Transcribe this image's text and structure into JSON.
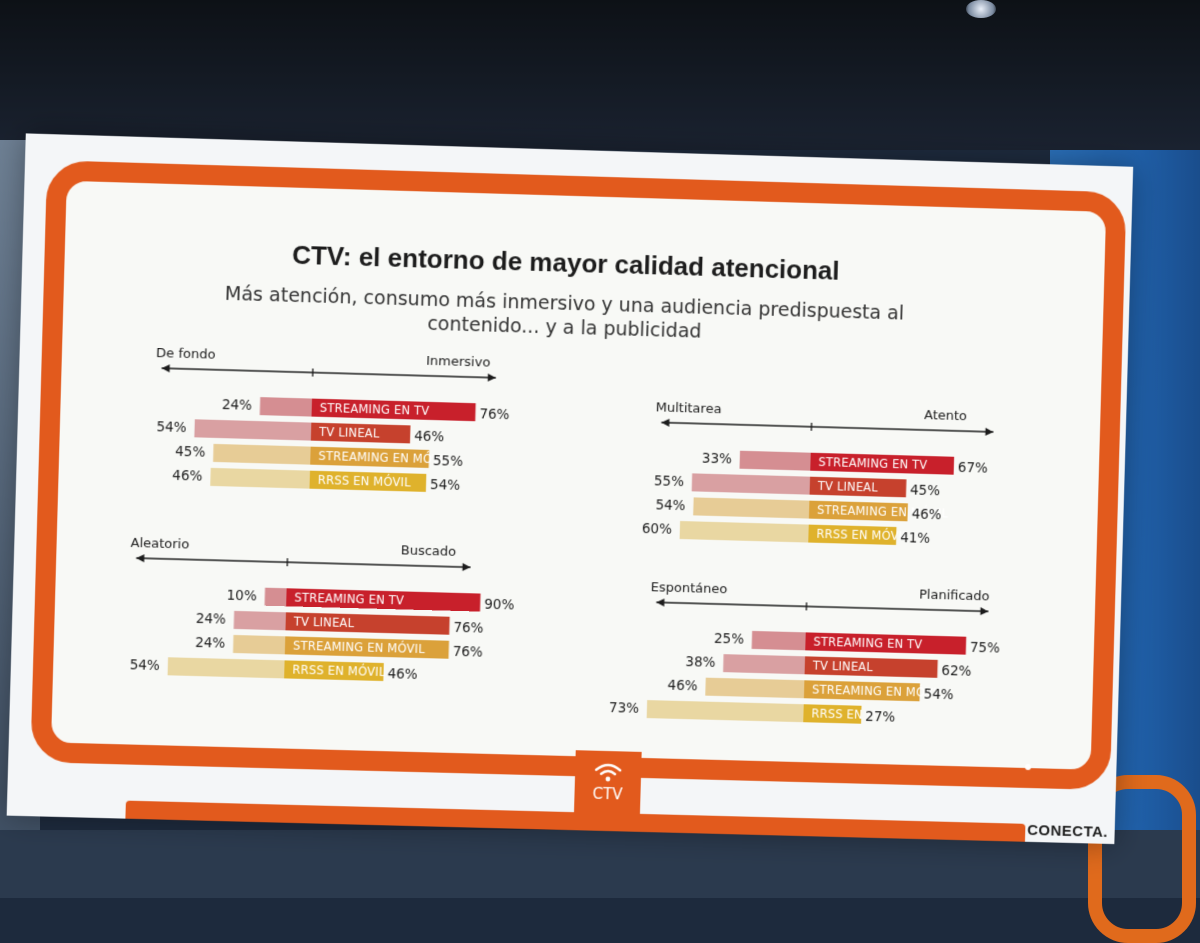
{
  "slide": {
    "title": "CTV: el entorno de mayor calidad atencional",
    "subtitle_line1": "Más atención, consumo más inmersivo y una audiencia predispuesta al",
    "subtitle_line2": "contenido... y a la publicidad",
    "stand_label": "CTV",
    "brand": "CONECTA."
  },
  "colors": {
    "frame": "#e25a1d",
    "left_stream_tv": "#d58e92",
    "left_tv_lineal": "#d9a0a2",
    "left_stream_movil": "#e7cc96",
    "left_rrss_movil": "#e9d7a2",
    "right_stream_tv": "#c8202b",
    "right_tv_lineal": "#c6412d",
    "right_stream_movil": "#dba13a",
    "right_rrss_movil": "#dfb22c"
  },
  "chart_data": [
    {
      "type": "bar",
      "title": "De fondo vs Inmersivo",
      "left_label": "De fondo",
      "right_label": "Inmersivo",
      "categories": [
        "STREAMING EN TV",
        "TV LINEAL",
        "STREAMING EN MÓVIL",
        "RRSS EN MÓVIL"
      ],
      "series": [
        {
          "name": "De fondo",
          "values": [
            24,
            54,
            45,
            46
          ]
        },
        {
          "name": "Inmersivo",
          "values": [
            76,
            46,
            55,
            54
          ]
        }
      ],
      "left_texts": [
        "24%",
        "54%",
        "45%",
        "46%"
      ],
      "right_texts": [
        "76%",
        "46%",
        "55%",
        "54%"
      ]
    },
    {
      "type": "bar",
      "title": "Multitarea vs Atento",
      "left_label": "Multitarea",
      "right_label": "Atento",
      "categories": [
        "STREAMING EN TV",
        "TV LINEAL",
        "STREAMING EN MÓVIL",
        "RRSS EN MÓVIL"
      ],
      "series": [
        {
          "name": "Multitarea",
          "values": [
            33,
            55,
            54,
            60
          ]
        },
        {
          "name": "Atento",
          "values": [
            67,
            45,
            46,
            41
          ]
        }
      ],
      "left_texts": [
        "33%",
        "55%",
        "54%",
        "60%"
      ],
      "right_texts": [
        "67%",
        "45%",
        "46%",
        "41%"
      ]
    },
    {
      "type": "bar",
      "title": "Aleatorio vs Buscado",
      "left_label": "Aleatorio",
      "right_label": "Buscado",
      "categories": [
        "STREAMING EN TV",
        "TV LINEAL",
        "STREAMING EN MÓVIL",
        "RRSS EN MÓVIL"
      ],
      "series": [
        {
          "name": "Aleatorio",
          "values": [
            10,
            24,
            24,
            54
          ]
        },
        {
          "name": "Buscado",
          "values": [
            90,
            76,
            76,
            46
          ]
        }
      ],
      "left_texts": [
        "10%",
        "24%",
        "24%",
        "54%"
      ],
      "right_texts": [
        "90%",
        "76%",
        "76%",
        "46%"
      ]
    },
    {
      "type": "bar",
      "title": "Espontáneo vs Planificado",
      "left_label": "Espontáneo",
      "right_label": "Planificado",
      "categories": [
        "STREAMING EN TV",
        "TV LINEAL",
        "STREAMING EN MÓVIL",
        "RRSS EN M"
      ],
      "series": [
        {
          "name": "Espontáneo",
          "values": [
            25,
            38,
            46,
            73
          ]
        },
        {
          "name": "Planificado",
          "values": [
            75,
            62,
            54,
            27
          ]
        }
      ],
      "left_texts": [
        "25%",
        "38%",
        "46%",
        "73%"
      ],
      "right_texts": [
        "75%",
        "62%",
        "54%",
        "27%"
      ]
    }
  ]
}
